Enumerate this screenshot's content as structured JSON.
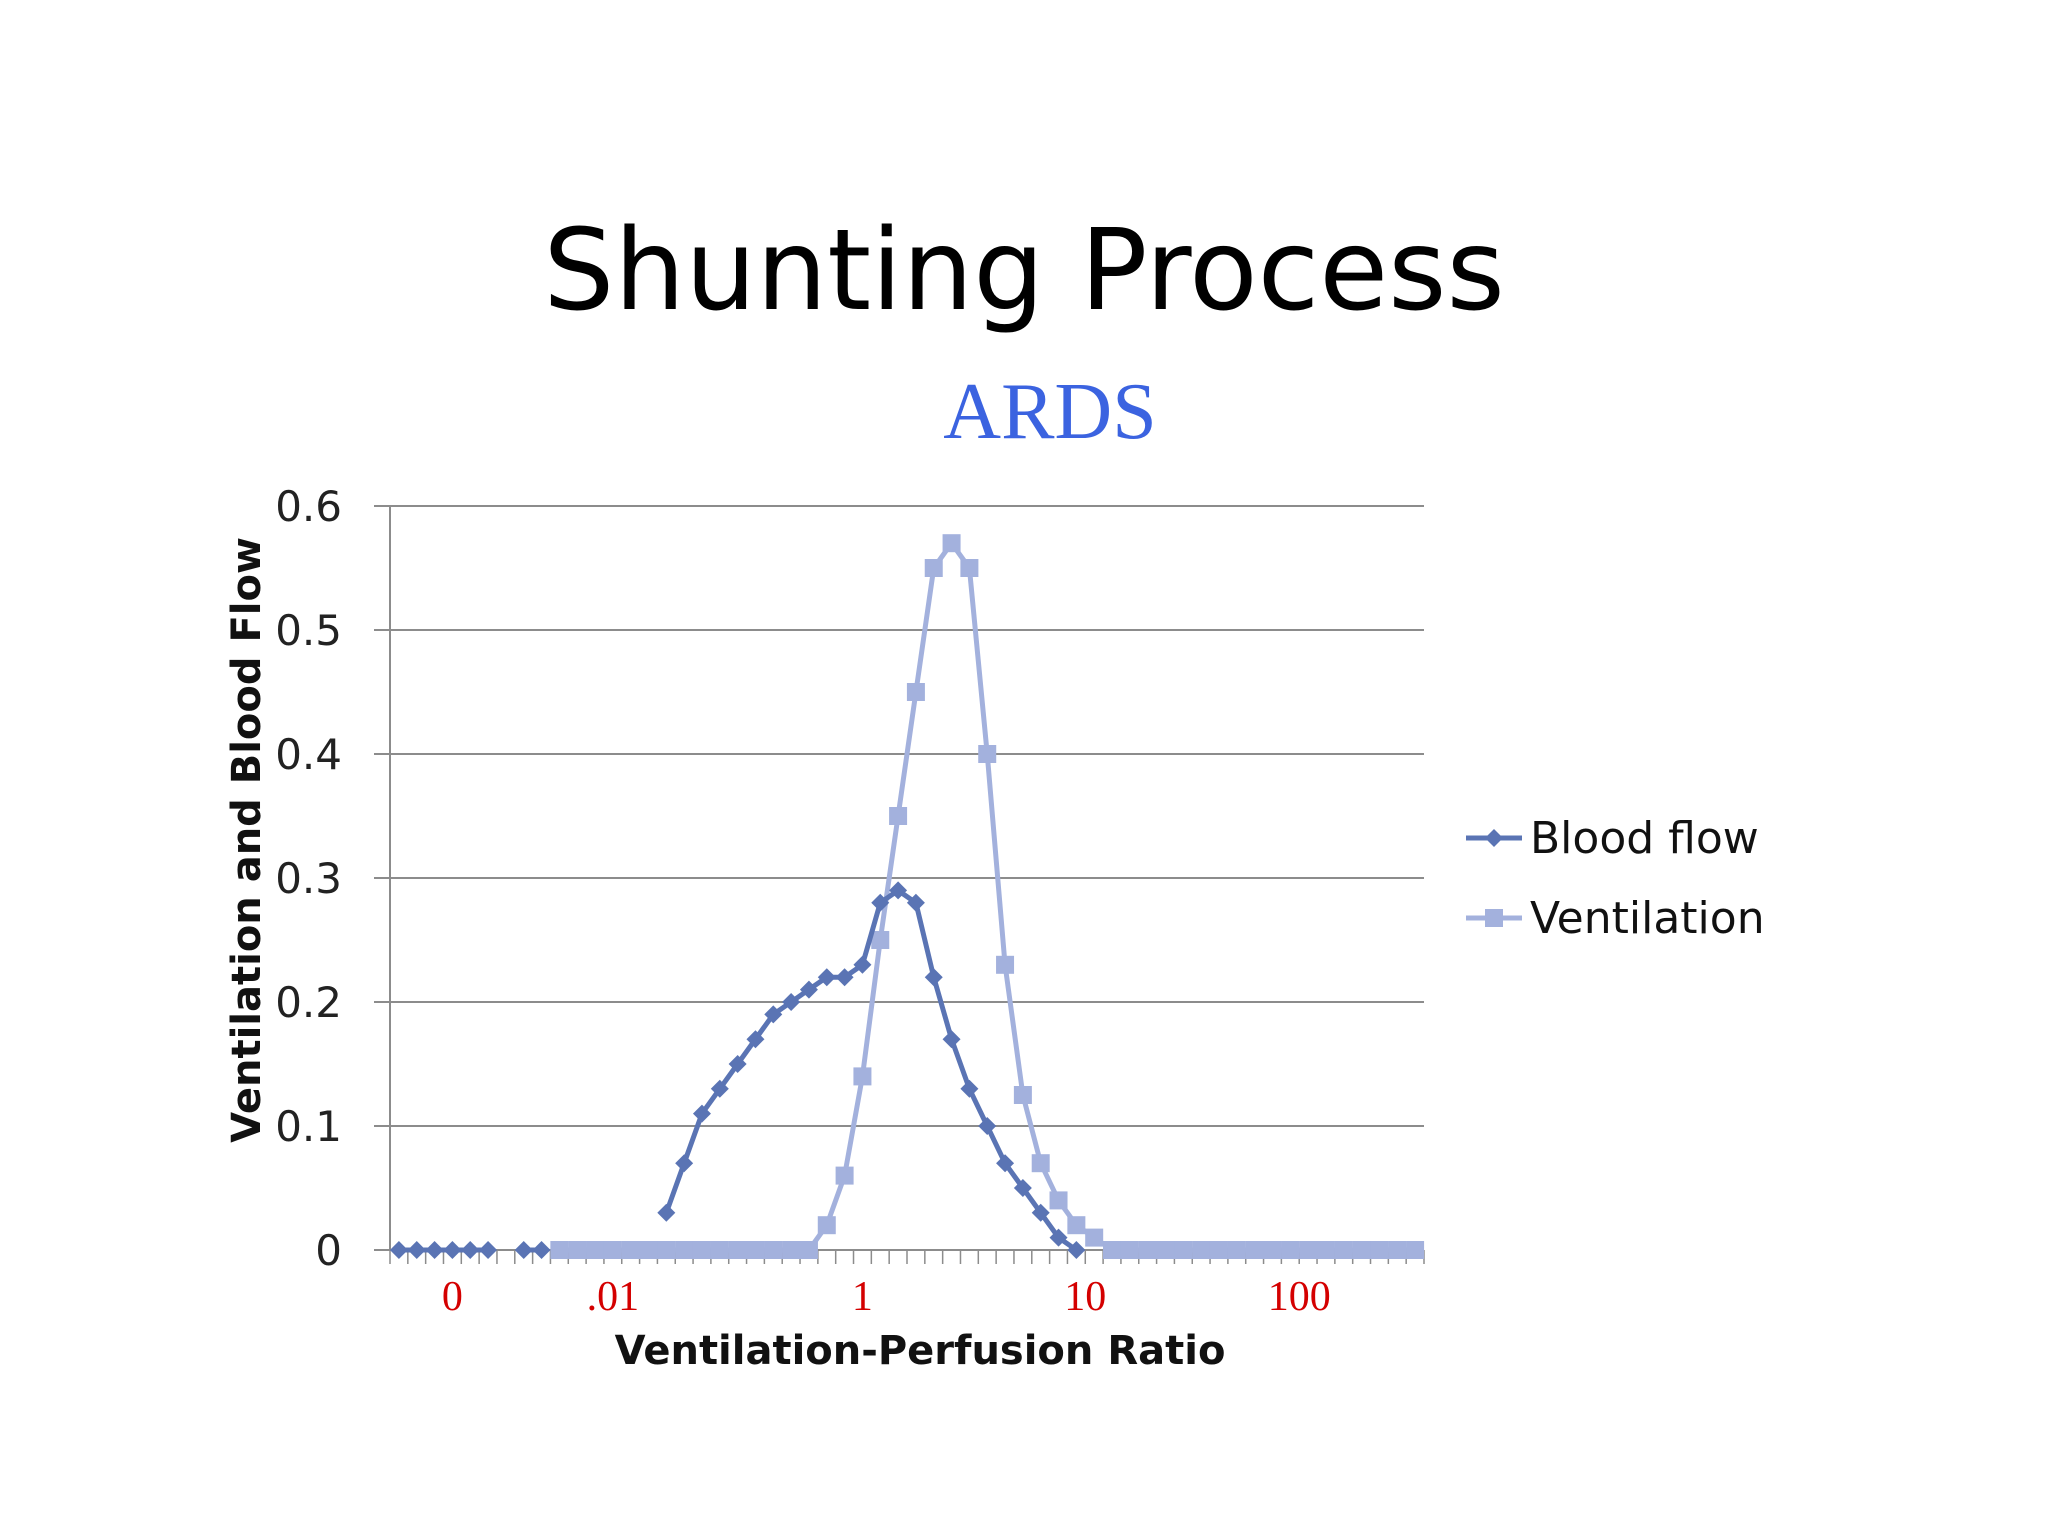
{
  "slide": {
    "title": "Shunting Process",
    "subtitle": "ARDS",
    "subtitle_color": "#3b63e0"
  },
  "chart_data": {
    "type": "line",
    "title": "",
    "xlabel": "Ventilation-Perfusion Ratio",
    "ylabel": "Ventilation and Blood Flow",
    "ylim": [
      0,
      0.6
    ],
    "y_ticks": [
      "0",
      "0.1",
      "0.2",
      "0.3",
      "0.4",
      "0.5",
      "0.6"
    ],
    "x_tick_labels": [
      "0",
      ".01",
      "1",
      "10",
      "100"
    ],
    "x_tick_label_color": "#d40000",
    "grid": true,
    "legend_position": "right",
    "x_scale": "category (log-spaced V/Q bins)",
    "series": [
      {
        "name": "Blood flow",
        "marker": "diamond",
        "color": "#5a74b4",
        "points": [
          {
            "x": 0,
            "y": 0
          },
          {
            "x": 1,
            "y": 0
          },
          {
            "x": 2,
            "y": 0
          },
          {
            "x": 3,
            "y": 0
          },
          {
            "x": 4,
            "y": 0
          },
          {
            "x": 5,
            "y": 0
          },
          {
            "x": 7,
            "y": 0
          },
          {
            "x": 8,
            "y": 0
          },
          {
            "x": 15,
            "y": 0.03
          },
          {
            "x": 16,
            "y": 0.07
          },
          {
            "x": 17,
            "y": 0.11
          },
          {
            "x": 18,
            "y": 0.13
          },
          {
            "x": 19,
            "y": 0.15
          },
          {
            "x": 20,
            "y": 0.17
          },
          {
            "x": 21,
            "y": 0.19
          },
          {
            "x": 22,
            "y": 0.2
          },
          {
            "x": 23,
            "y": 0.21
          },
          {
            "x": 24,
            "y": 0.22
          },
          {
            "x": 25,
            "y": 0.22
          },
          {
            "x": 26,
            "y": 0.23
          },
          {
            "x": 27,
            "y": 0.28
          },
          {
            "x": 28,
            "y": 0.29
          },
          {
            "x": 29,
            "y": 0.28
          },
          {
            "x": 30,
            "y": 0.22
          },
          {
            "x": 31,
            "y": 0.17
          },
          {
            "x": 32,
            "y": 0.13
          },
          {
            "x": 33,
            "y": 0.1
          },
          {
            "x": 34,
            "y": 0.07
          },
          {
            "x": 35,
            "y": 0.05
          },
          {
            "x": 36,
            "y": 0.03
          },
          {
            "x": 37,
            "y": 0.01
          },
          {
            "x": 38,
            "y": 0
          }
        ]
      },
      {
        "name": "Ventilation",
        "marker": "square",
        "color": "#a3b1dd",
        "points": [
          {
            "x": 9,
            "y": 0
          },
          {
            "x": 10,
            "y": 0
          },
          {
            "x": 11,
            "y": 0
          },
          {
            "x": 12,
            "y": 0
          },
          {
            "x": 13,
            "y": 0
          },
          {
            "x": 14,
            "y": 0
          },
          {
            "x": 15,
            "y": 0
          },
          {
            "x": 16,
            "y": 0
          },
          {
            "x": 17,
            "y": 0
          },
          {
            "x": 18,
            "y": 0
          },
          {
            "x": 19,
            "y": 0
          },
          {
            "x": 20,
            "y": 0
          },
          {
            "x": 21,
            "y": 0
          },
          {
            "x": 22,
            "y": 0
          },
          {
            "x": 23,
            "y": 0
          },
          {
            "x": 24,
            "y": 0.02
          },
          {
            "x": 25,
            "y": 0.06
          },
          {
            "x": 26,
            "y": 0.14
          },
          {
            "x": 27,
            "y": 0.25
          },
          {
            "x": 28,
            "y": 0.35
          },
          {
            "x": 29,
            "y": 0.45
          },
          {
            "x": 30,
            "y": 0.55
          },
          {
            "x": 31,
            "y": 0.57
          },
          {
            "x": 32,
            "y": 0.55
          },
          {
            "x": 33,
            "y": 0.4
          },
          {
            "x": 34,
            "y": 0.23
          },
          {
            "x": 35,
            "y": 0.125
          },
          {
            "x": 36,
            "y": 0.07
          },
          {
            "x": 37,
            "y": 0.04
          },
          {
            "x": 38,
            "y": 0.02
          },
          {
            "x": 39,
            "y": 0.01
          },
          {
            "x": 40,
            "y": 0
          },
          {
            "x": 41,
            "y": 0
          },
          {
            "x": 42,
            "y": 0
          },
          {
            "x": 43,
            "y": 0
          },
          {
            "x": 44,
            "y": 0
          },
          {
            "x": 45,
            "y": 0
          },
          {
            "x": 46,
            "y": 0
          },
          {
            "x": 47,
            "y": 0
          },
          {
            "x": 48,
            "y": 0
          },
          {
            "x": 49,
            "y": 0
          },
          {
            "x": 50,
            "y": 0
          },
          {
            "x": 51,
            "y": 0
          },
          {
            "x": 52,
            "y": 0
          },
          {
            "x": 53,
            "y": 0
          },
          {
            "x": 54,
            "y": 0
          },
          {
            "x": 55,
            "y": 0
          },
          {
            "x": 56,
            "y": 0
          },
          {
            "x": 57,
            "y": 0
          }
        ]
      }
    ]
  }
}
